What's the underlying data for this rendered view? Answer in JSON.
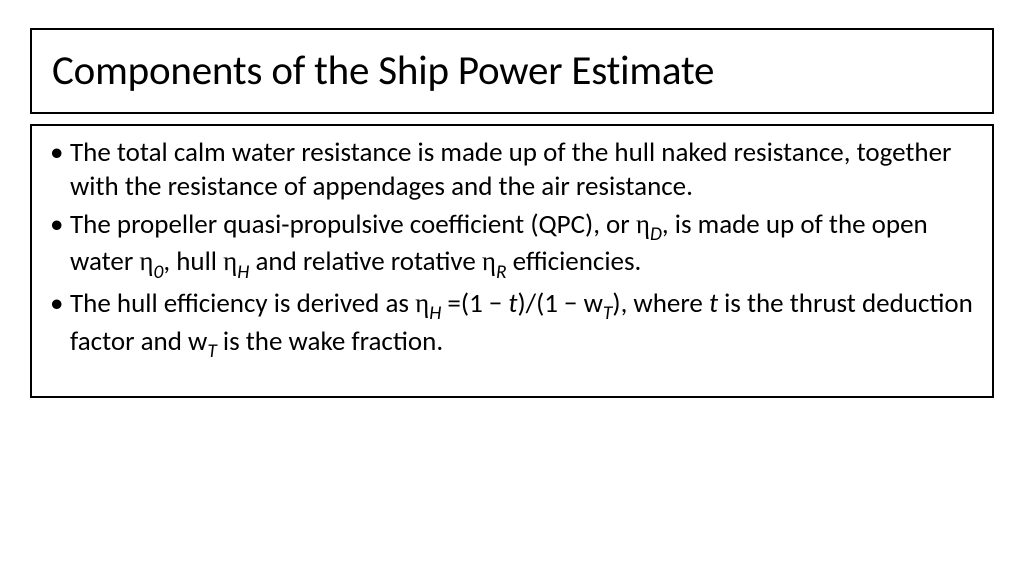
{
  "slide": {
    "title": "Components of the Ship Power Estimate",
    "bullets": [
      {
        "html": "The total calm water resistance is made up of the hull naked resistance, together with the resistance of appendages and the air resistance."
      },
      {
        "html": "The propeller quasi-propulsive coefficient (QPC), or <span class='eta'>&eta;</span><span class='sub'>D</span>, is made up of the open water <span class='eta'>&eta;</span><span class='sub'>0</span>, hull <span class='eta'>&eta;</span><span class='sub'>H</span> and relative rotative <span class='eta'>&eta;</span><span class='sub'>R</span> efficiencies."
      },
      {
        "html": "The hull efficiency is derived as <span class='eta'>&eta;</span><span class='sub'>H</span> =(1 &minus; <span class='ital'>t</span>)/(1 &minus; w<span class='sub'>T</span>), where <span class='ital'>t</span> is the thrust deduction factor and w<span class='sub'>T</span> is the wake fraction."
      }
    ]
  },
  "style": {
    "background_color": "#ffffff",
    "border_color": "#000000",
    "border_width": 2,
    "title_fontsize": 41,
    "title_fontweight": 400,
    "body_fontsize": 27,
    "body_lineheight": 1.25,
    "font_family": "Calibri",
    "text_color": "#000000"
  }
}
